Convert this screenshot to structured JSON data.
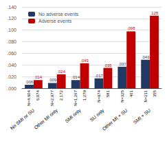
{
  "chart_data": {
    "type": "bar",
    "categories": [
      "No SMI or SU",
      "Other MI only",
      "SMI only",
      "SU only",
      "Other MI + SU",
      "SMI + SU"
    ],
    "series": [
      {
        "name": "No adverse events",
        "color": "#1f3864",
        "values": [
          0.006,
          0.009,
          0.014,
          0.017,
          0.037,
          0.049
        ],
        "value_labels": [
          ".006",
          ".009",
          ".014",
          ".017",
          ".037",
          ".049"
        ],
        "n_labels": [
          "N=4,604",
          "N=2,977",
          "N=1,267",
          "N=974",
          "N=325",
          "N=211"
        ]
      },
      {
        "name": "Adverse events",
        "color": "#c00000",
        "values": [
          0.014,
          0.024,
          0.043,
          0.035,
          0.098,
          0.125
        ],
        "value_labels": [
          ".014",
          ".024",
          ".043",
          ".035",
          ".098",
          ".125"
        ],
        "n_labels": [
          "6,074",
          "2,172",
          "1,279",
          "581",
          "461",
          "355"
        ]
      }
    ],
    "ylim": [
      0,
      0.14
    ],
    "yticks": [
      {
        "value": 0,
        "label": ".000"
      },
      {
        "value": 0.02,
        "label": ".020"
      },
      {
        "value": 0.04,
        "label": ".040"
      },
      {
        "value": 0.06,
        "label": ".060"
      },
      {
        "value": 0.08,
        "label": ".080"
      },
      {
        "value": 0.1,
        "label": ".100"
      },
      {
        "value": 0.12,
        "label": ".120"
      },
      {
        "value": 0.14,
        "label": ".140"
      }
    ],
    "grid": true,
    "legend": "upper left",
    "data_labels": true
  }
}
